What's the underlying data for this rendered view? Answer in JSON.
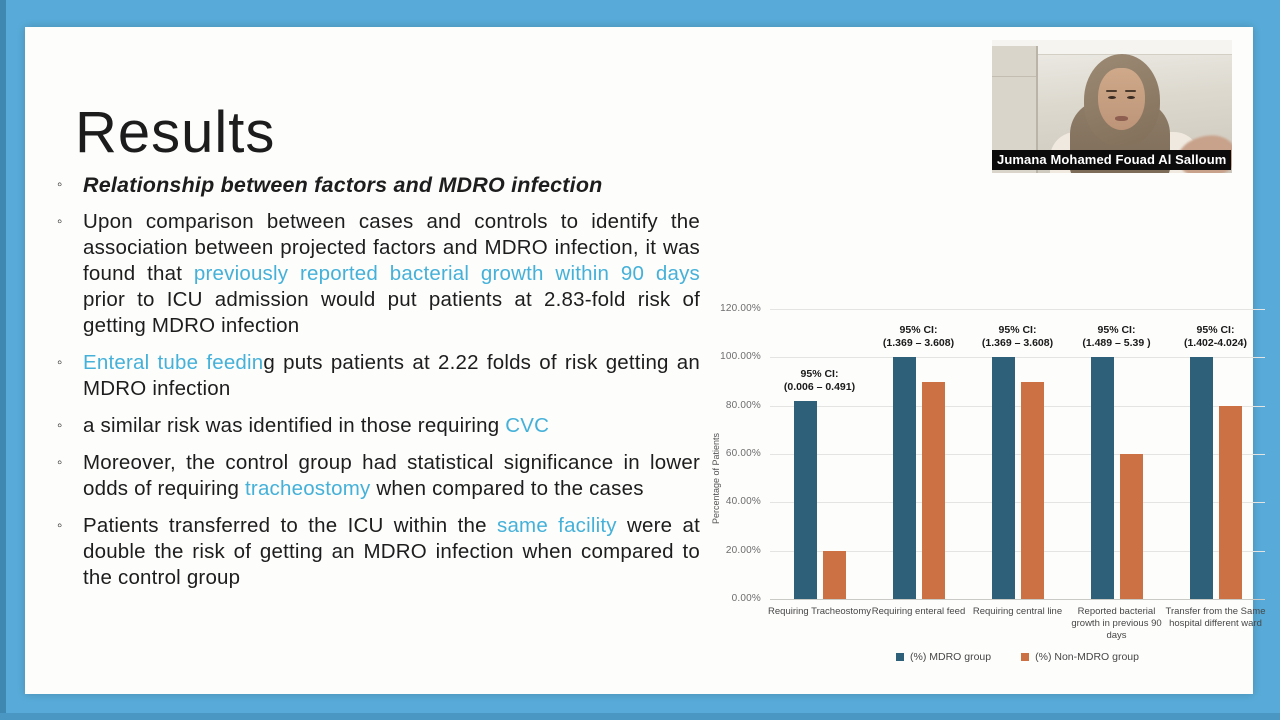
{
  "frame": {
    "border_color": "#58abd8"
  },
  "webcam": {
    "name": "Jumana Mohamed Fouad Al Salloum"
  },
  "slide": {
    "title": "Results",
    "accent_color": "#45b1d9",
    "bullets": [
      {
        "style": "heading",
        "segments": [
          {
            "t": "Relationship between factors and MDRO infection",
            "accent": false
          }
        ]
      },
      {
        "style": "body",
        "segments": [
          {
            "t": "Upon comparison between cases and controls to identify the association between projected factors and MDRO infection, it was found that ",
            "accent": false
          },
          {
            "t": "previously reported bacterial growth within 90 days",
            "accent": true
          },
          {
            "t": " prior to ICU admission would put patients at 2.83-fold risk of getting MDRO infection",
            "accent": false
          }
        ]
      },
      {
        "style": "body",
        "segments": [
          {
            "t": "Enteral tube feedin",
            "accent": true
          },
          {
            "t": "g puts patients at 2.22 folds of risk getting an MDRO infection",
            "accent": false
          }
        ]
      },
      {
        "style": "body",
        "segments": [
          {
            "t": "a similar risk was identified in those requiring ",
            "accent": false
          },
          {
            "t": "CVC",
            "accent": true
          }
        ]
      },
      {
        "style": "body",
        "segments": [
          {
            "t": "Moreover, the control group had statistical significance in lower odds of requiring ",
            "accent": false
          },
          {
            "t": "tracheostomy",
            "accent": true
          },
          {
            "t": " when compared to the cases",
            "accent": false
          }
        ]
      },
      {
        "style": "body",
        "segments": [
          {
            "t": "Patients transferred to the ICU within the ",
            "accent": false
          },
          {
            "t": "same facility",
            "accent": true
          },
          {
            "t": " were at double the risk of getting an MDRO infection when compared to the control group",
            "accent": false
          }
        ]
      }
    ]
  },
  "chart_data": {
    "type": "bar",
    "title": "",
    "ylabel": "Percentage of Patients",
    "ylim": [
      0,
      120
    ],
    "ytick_labels": [
      "0.00%",
      "20.00%",
      "40.00%",
      "60.00%",
      "80.00%",
      "100.00%",
      "120.00%"
    ],
    "grid": true,
    "legend_position": "bottom",
    "categories": [
      "Requiring Tracheostomy",
      "Requiring enteral feed",
      "Requiring central line",
      "Reported bacterial growth in previous 90 days",
      "Transfer from the Same hospital different ward"
    ],
    "series": [
      {
        "name": "(%) MDRO group",
        "color": "#2e6179",
        "values": [
          82,
          100,
          100,
          100,
          100
        ]
      },
      {
        "name": "(%) Non-MDRO group",
        "color": "#cb7144",
        "values": [
          20,
          90,
          90,
          60,
          80
        ]
      }
    ],
    "annotations": [
      {
        "l1": "95% CI:",
        "l2": "(0.006 – 0.491)"
      },
      {
        "l1": "95% CI:",
        "l2": "(1.369 – 3.608)"
      },
      {
        "l1": "95% CI:",
        "l2": "(1.369 – 3.608)"
      },
      {
        "l1": "95% CI:",
        "l2": "(1.489 – 5.39 )"
      },
      {
        "l1": "95% CI:",
        "l2": "(1.402-4.024)"
      }
    ]
  }
}
